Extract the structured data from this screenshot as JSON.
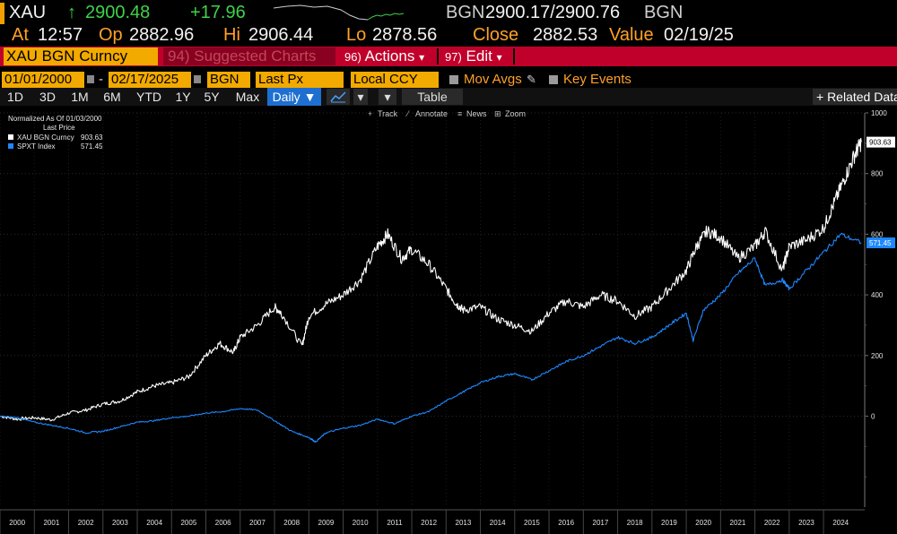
{
  "ticker": {
    "symbol": "XAU",
    "arrow": "↑",
    "last": "2900.48",
    "change": "+17.96",
    "bid_ask_label": "BGN",
    "bid_ask": "2900.17/2900.76",
    "source": "BGN"
  },
  "quote_row": {
    "at_label": "At",
    "at_value": "12:57",
    "op_label": "Op",
    "op_value": "2882.96",
    "hi_label": "Hi",
    "hi_value": "2906.44",
    "lo_label": "Lo",
    "lo_value": "2878.56",
    "close_label": "Close",
    "close_value": "2882.53",
    "value_label": "Value",
    "value_date": "02/19/25"
  },
  "command_bar": {
    "security": "XAU BGN Curncy",
    "suggested": "94) Suggested Charts",
    "actions_num": "96)",
    "actions": "Actions",
    "edit_num": "97)",
    "edit": "Edit",
    "caret": "▾"
  },
  "settings_bar": {
    "start_date": "01/01/2000",
    "dash": "-",
    "end_date": "02/17/2025",
    "source": "BGN",
    "field": "Last Px",
    "currency": "Local CCY",
    "mov_avgs": "Mov Avgs",
    "key_events": "Key Events"
  },
  "timeframes": [
    "1D",
    "3D",
    "1M",
    "6M",
    "YTD",
    "1Y",
    "5Y",
    "Max"
  ],
  "period": "Daily ▼",
  "table_label": "Table",
  "related_label": "+ Related Data",
  "tools": [
    "Track",
    "Annotate",
    "News",
    "Zoom"
  ],
  "legend": {
    "normalized": "Normalized As Of 01/03/2000",
    "last_price": "Last Price",
    "series1_name": "XAU BGN Curncy",
    "series1_value": "903.63",
    "series2_name": "SPXT Index",
    "series2_value": "571.45"
  },
  "colors": {
    "xau": "#ffffff",
    "spxt": "#1e88ff",
    "accent_orange": "#f2a900",
    "command_red": "#c0002a",
    "green": "#3fd24a"
  },
  "chart_data": {
    "type": "line",
    "x_ticks": [
      "2000",
      "2001",
      "2002",
      "2003",
      "2004",
      "2005",
      "2006",
      "2007",
      "2008",
      "2009",
      "2010",
      "2011",
      "2012",
      "2013",
      "2014",
      "2015",
      "2016",
      "2017",
      "2018",
      "2019",
      "2020",
      "2021",
      "2022",
      "2023",
      "2024"
    ],
    "y_ticks": [
      0,
      200,
      400,
      600,
      800,
      1000
    ],
    "ylim": [
      -300,
      1000
    ],
    "xlim": [
      2000,
      2025.2
    ],
    "series": [
      {
        "name": "XAU BGN Curncy",
        "color": "#ffffff",
        "last_label": "903.63",
        "x": [
          2000,
          2000.5,
          2001,
          2001.5,
          2002,
          2002.5,
          2003,
          2003.5,
          2004,
          2004.5,
          2005,
          2005.5,
          2006,
          2006.4,
          2006.8,
          2007,
          2007.5,
          2008,
          2008.2,
          2008.8,
          2009,
          2009.5,
          2010,
          2010.5,
          2011,
          2011.3,
          2011.7,
          2012,
          2012.5,
          2013,
          2013.3,
          2013.5,
          2014,
          2014.5,
          2015,
          2015.5,
          2016,
          2016.5,
          2017,
          2017.5,
          2018,
          2018.5,
          2019,
          2019.5,
          2020,
          2020.3,
          2020.6,
          2021,
          2021.5,
          2022,
          2022.3,
          2022.8,
          2023,
          2023.5,
          2024,
          2024.3,
          2024.6,
          2024.9,
          2025.1
        ],
        "values": [
          0,
          -10,
          -5,
          -12,
          10,
          20,
          40,
          50,
          80,
          100,
          110,
          130,
          200,
          240,
          210,
          260,
          300,
          360,
          340,
          230,
          330,
          370,
          400,
          450,
          560,
          600,
          520,
          550,
          500,
          420,
          370,
          350,
          360,
          320,
          300,
          280,
          340,
          380,
          360,
          400,
          380,
          330,
          360,
          420,
          480,
          560,
          610,
          590,
          520,
          560,
          610,
          480,
          560,
          580,
          620,
          700,
          780,
          860,
          903.63
        ]
      },
      {
        "name": "SPXT Index",
        "color": "#1e88ff",
        "last_label": "571.45",
        "x": [
          2000,
          2000.5,
          2001,
          2001.5,
          2002,
          2002.5,
          2003,
          2003.5,
          2004,
          2004.5,
          2005,
          2005.5,
          2006,
          2006.5,
          2007,
          2007.5,
          2008,
          2008.5,
          2009,
          2009.2,
          2009.5,
          2010,
          2010.5,
          2011,
          2011.5,
          2012,
          2012.5,
          2013,
          2013.5,
          2014,
          2014.5,
          2015,
          2015.5,
          2016,
          2016.5,
          2017,
          2017.5,
          2018,
          2018.5,
          2019,
          2019.5,
          2020,
          2020.2,
          2020.5,
          2021,
          2021.5,
          2022,
          2022.3,
          2022.8,
          2023,
          2023.5,
          2024,
          2024.5,
          2025.1
        ],
        "values": [
          0,
          -5,
          -20,
          -30,
          -40,
          -55,
          -50,
          -35,
          -20,
          -15,
          -5,
          0,
          10,
          15,
          25,
          20,
          -15,
          -50,
          -70,
          -85,
          -55,
          -40,
          -30,
          -10,
          -25,
          0,
          15,
          50,
          80,
          110,
          130,
          140,
          120,
          150,
          180,
          200,
          230,
          260,
          240,
          260,
          300,
          340,
          250,
          350,
          400,
          470,
          520,
          430,
          450,
          420,
          480,
          540,
          600,
          571.45
        ]
      }
    ]
  }
}
